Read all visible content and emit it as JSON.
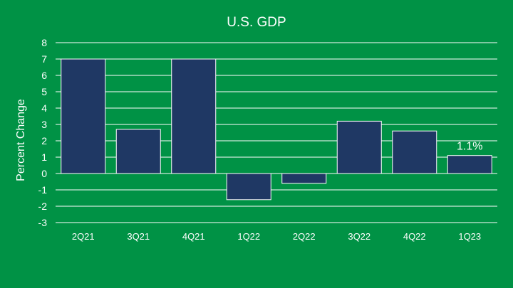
{
  "chart_data": {
    "type": "bar",
    "title": "U.S. GDP",
    "xlabel": "",
    "ylabel": "Percent Change",
    "categories": [
      "2Q21",
      "3Q21",
      "4Q21",
      "1Q22",
      "2Q22",
      "3Q22",
      "4Q22",
      "1Q23"
    ],
    "values": [
      7.0,
      2.7,
      7.0,
      -1.6,
      -0.6,
      3.2,
      2.6,
      1.1
    ],
    "ylim": [
      -3,
      8
    ],
    "yticks": [
      "-3",
      "-2",
      "-1",
      "0",
      "1",
      "2",
      "3",
      "4",
      "5",
      "6",
      "7",
      "8"
    ],
    "data_labels": [
      {
        "category": "1Q23",
        "text": "1.1%"
      }
    ],
    "grid": true,
    "colors": {
      "background": "#009245",
      "bar": "#1f3864",
      "grid": "#ffffff",
      "text": "#ffffff"
    }
  }
}
